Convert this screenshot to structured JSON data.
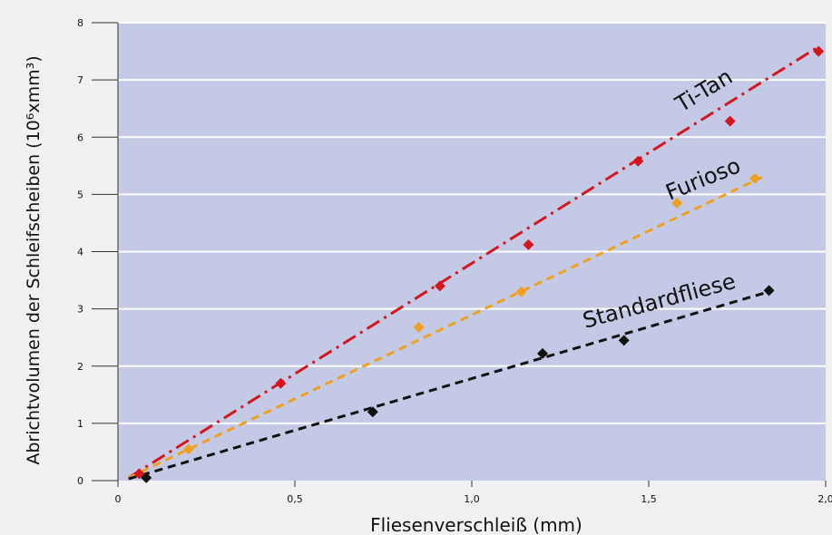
{
  "chart_data": {
    "type": "scatter",
    "title": "",
    "xlabel": "Fliesenverschleiß (mm)",
    "ylabel": "Abrichtvolumen der Schleifscheiben (10⁶xmm³)",
    "xlim": [
      0,
      2.0
    ],
    "ylim": [
      0,
      8
    ],
    "x_ticks": [
      0,
      0.5,
      1.0,
      1.5,
      2.0
    ],
    "x_tick_labels": [
      "0",
      "0,5",
      "1,0",
      "1,5",
      "2,0"
    ],
    "y_ticks": [
      0,
      1,
      2,
      3,
      4,
      5,
      6,
      7,
      8
    ],
    "y_tick_labels": [
      "0",
      "1",
      "2",
      "3",
      "4",
      "5",
      "6",
      "7",
      "8"
    ],
    "grid": "horizontal",
    "colors": {
      "plot_background": "#c4cae6",
      "grid": "#ffffff",
      "page_background": "#f1f1f3"
    },
    "series": [
      {
        "name": "Ti-Tan",
        "color": "#d4161e",
        "marker": "diamond",
        "trend_style": "dash-dot",
        "points": [
          [
            0.06,
            0.12
          ],
          [
            0.46,
            1.7
          ],
          [
            0.91,
            3.4
          ],
          [
            1.16,
            4.12
          ],
          [
            1.47,
            5.58
          ],
          [
            1.73,
            6.28
          ],
          [
            1.98,
            7.5
          ]
        ],
        "trend": [
          [
            0.03,
            0.05
          ],
          [
            1.98,
            7.58
          ]
        ]
      },
      {
        "name": "Furioso",
        "color": "#f0a020",
        "marker": "diamond",
        "trend_style": "dashed",
        "points": [
          [
            0.2,
            0.55
          ],
          [
            0.85,
            2.68
          ],
          [
            1.14,
            3.3
          ],
          [
            1.58,
            4.85
          ],
          [
            1.8,
            5.28
          ]
        ],
        "trend": [
          [
            0.03,
            0.05
          ],
          [
            1.82,
            5.3
          ]
        ]
      },
      {
        "name": "Standardfliese",
        "color": "#111111",
        "marker": "diamond",
        "trend_style": "dashed",
        "points": [
          [
            0.08,
            0.05
          ],
          [
            0.72,
            1.2
          ],
          [
            1.2,
            2.22
          ],
          [
            1.43,
            2.45
          ],
          [
            1.84,
            3.32
          ]
        ],
        "trend": [
          [
            0.03,
            0.03
          ],
          [
            1.84,
            3.3
          ]
        ]
      }
    ]
  }
}
